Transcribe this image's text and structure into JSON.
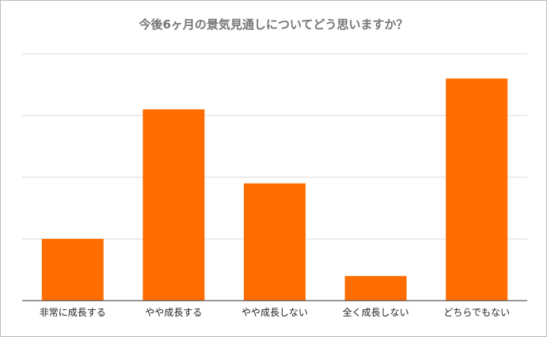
{
  "chart_data": {
    "type": "bar",
    "title": "今後6ヶ月の景気見通しについてどう思いますか？",
    "categories": [
      "非常に成長する",
      "やや成長する",
      "やや成長しない",
      "全く成長しない",
      "どちらでもない"
    ],
    "values": [
      10,
      31,
      19,
      4,
      36
    ],
    "ylim": [
      0,
      40
    ],
    "grid": true,
    "bar_color": "#ff6d00"
  }
}
